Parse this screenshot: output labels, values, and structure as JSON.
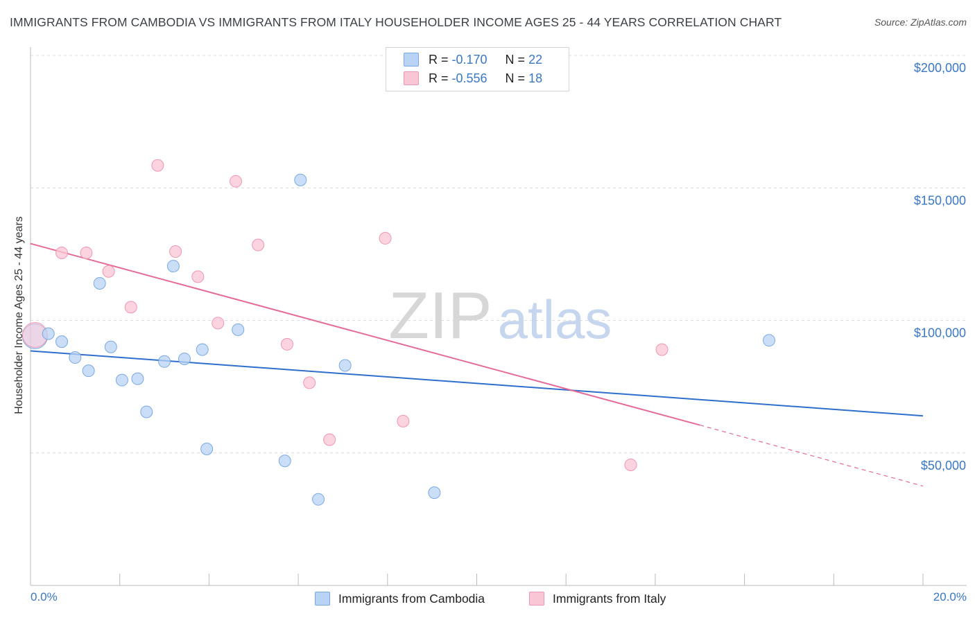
{
  "title": "IMMIGRANTS FROM CAMBODIA VS IMMIGRANTS FROM ITALY HOUSEHOLDER INCOME AGES 25 - 44 YEARS CORRELATION CHART",
  "source": "Source: ZipAtlas.com",
  "watermark": {
    "zip": "ZIP",
    "atlas": "atlas"
  },
  "legend": {
    "rows": [
      {
        "r_label": "R =",
        "r_value": "-0.170",
        "n_label": "N =",
        "n_value": "22"
      },
      {
        "r_label": "R =",
        "r_value": "-0.556",
        "n_label": "N =",
        "n_value": "18"
      }
    ]
  },
  "colors": {
    "cambodia_fill": "#b9d3f5",
    "cambodia_stroke": "#7aa8e0",
    "cambodia_line": "#2f6fcc",
    "italy_fill": "#f9c6d5",
    "italy_stroke": "#ee97b2",
    "italy_line": "#e46a98",
    "tick_label": "#3a77c4",
    "grid": "#dcdcdc"
  },
  "chart_data": {
    "type": "scatter",
    "title": "IMMIGRANTS FROM CAMBODIA VS IMMIGRANTS FROM ITALY HOUSEHOLDER INCOME AGES 25 - 44 YEARS CORRELATION CHART",
    "xlabel": "",
    "ylabel": "Householder Income Ages 25 - 44 years",
    "xlim": [
      0,
      20
    ],
    "ylim": [
      0,
      200000
    ],
    "x_tick_labels": [
      "0.0%",
      "20.0%"
    ],
    "y_ticks": [
      50000,
      100000,
      150000,
      200000
    ],
    "y_tick_labels": [
      "$50,000",
      "$100,000",
      "$150,000",
      "$200,000"
    ],
    "grid": true,
    "legend_position": "top-center",
    "series": [
      {
        "name": "Immigrants from Cambodia",
        "points": [
          {
            "x": 0.1,
            "y": 94000,
            "big": true
          },
          {
            "x": 0.4,
            "y": 95000
          },
          {
            "x": 0.7,
            "y": 92000
          },
          {
            "x": 1.0,
            "y": 86000
          },
          {
            "x": 1.3,
            "y": 81000
          },
          {
            "x": 1.55,
            "y": 114000
          },
          {
            "x": 1.8,
            "y": 90000
          },
          {
            "x": 2.05,
            "y": 77500
          },
          {
            "x": 2.4,
            "y": 78000
          },
          {
            "x": 2.6,
            "y": 65500
          },
          {
            "x": 3.0,
            "y": 84500
          },
          {
            "x": 3.2,
            "y": 120500
          },
          {
            "x": 3.45,
            "y": 85500
          },
          {
            "x": 3.85,
            "y": 89000
          },
          {
            "x": 3.95,
            "y": 51500
          },
          {
            "x": 4.65,
            "y": 96500
          },
          {
            "x": 6.05,
            "y": 153000
          },
          {
            "x": 5.7,
            "y": 47000
          },
          {
            "x": 6.45,
            "y": 32500
          },
          {
            "x": 7.05,
            "y": 83000
          },
          {
            "x": 9.05,
            "y": 35000
          },
          {
            "x": 16.55,
            "y": 92500
          }
        ],
        "trend": {
          "x0": 0,
          "y0": 88500,
          "x1": 20,
          "y1": 64000
        }
      },
      {
        "name": "Immigrants from Italy",
        "points": [
          {
            "x": 0.1,
            "y": 94500,
            "big": true
          },
          {
            "x": 0.7,
            "y": 125500
          },
          {
            "x": 1.25,
            "y": 125500
          },
          {
            "x": 1.75,
            "y": 118500
          },
          {
            "x": 2.25,
            "y": 105000
          },
          {
            "x": 2.85,
            "y": 158500
          },
          {
            "x": 3.25,
            "y": 126000
          },
          {
            "x": 3.75,
            "y": 116500
          },
          {
            "x": 4.2,
            "y": 99000
          },
          {
            "x": 4.6,
            "y": 152500
          },
          {
            "x": 5.1,
            "y": 128500
          },
          {
            "x": 5.75,
            "y": 91000
          },
          {
            "x": 6.25,
            "y": 76500
          },
          {
            "x": 6.7,
            "y": 55000
          },
          {
            "x": 7.95,
            "y": 131000
          },
          {
            "x": 8.35,
            "y": 62000
          },
          {
            "x": 13.45,
            "y": 45500
          },
          {
            "x": 14.15,
            "y": 89000
          }
        ],
        "trend": {
          "x0": 0,
          "y0": 129000,
          "x1": 15,
          "y1": 60500,
          "dash_to_x": 20,
          "dash_to_y": 37500
        }
      }
    ]
  }
}
